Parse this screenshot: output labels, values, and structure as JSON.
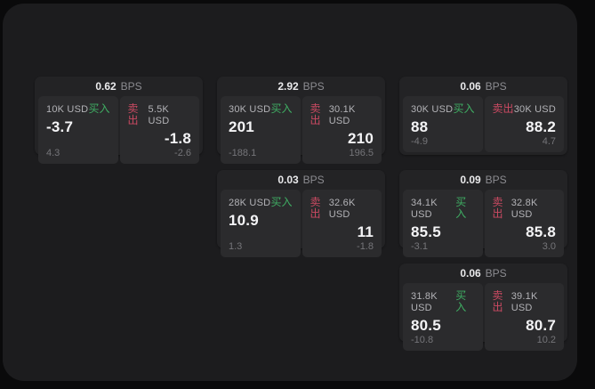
{
  "labels": {
    "bps_unit": "BPS",
    "buy": "买入",
    "sell": "卖出"
  },
  "colors": {
    "buy_green": "#3fae63",
    "sell_red": "#cb4a62",
    "panel_bg": "#1c1c1e",
    "card_bg": "#232325",
    "tile_bg": "#2b2b2d"
  },
  "cards": [
    {
      "bps": "0.62",
      "buy": {
        "amount": "10K USD",
        "price": "-3.7",
        "delta": "4.3"
      },
      "sell": {
        "amount": "5.5K USD",
        "price": "-1.8",
        "delta": "-2.6"
      }
    },
    {
      "bps": "2.92",
      "buy": {
        "amount": "30K USD",
        "price": "201",
        "delta": "-188.1"
      },
      "sell": {
        "amount": "30.1K USD",
        "price": "210",
        "delta": "196.5"
      }
    },
    {
      "bps": "0.06",
      "buy": {
        "amount": "30K USD",
        "price": "88",
        "delta": "-4.9"
      },
      "sell": {
        "amount": "30K USD",
        "price": "88.2",
        "delta": "4.7"
      }
    },
    {
      "bps": "0.03",
      "buy": {
        "amount": "28K USD",
        "price": "10.9",
        "delta": "1.3"
      },
      "sell": {
        "amount": "32.6K USD",
        "price": "11",
        "delta": "-1.8"
      }
    },
    {
      "bps": "0.09",
      "buy": {
        "amount": "34.1K USD",
        "price": "85.5",
        "delta": "-3.1"
      },
      "sell": {
        "amount": "32.8K USD",
        "price": "85.8",
        "delta": "3.0"
      }
    },
    {
      "bps": "0.06",
      "buy": {
        "amount": "31.8K USD",
        "price": "80.5",
        "delta": "-10.8"
      },
      "sell": {
        "amount": "39.1K USD",
        "price": "80.7",
        "delta": "10.2"
      }
    }
  ]
}
